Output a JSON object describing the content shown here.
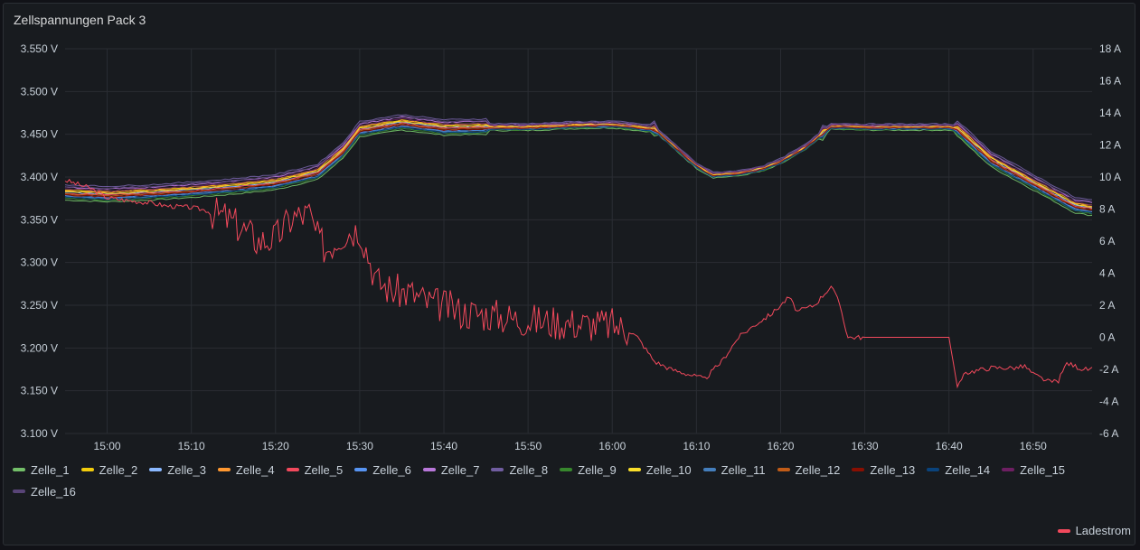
{
  "panel": {
    "title": "Zellspannungen Pack 3"
  },
  "chart_data": {
    "type": "line",
    "title": "Zellspannungen Pack 3",
    "x_ticks": [
      "15:00",
      "15:10",
      "15:20",
      "15:30",
      "15:40",
      "15:50",
      "16:00",
      "16:10",
      "16:20",
      "16:30",
      "16:40",
      "16:50"
    ],
    "x_range": [
      "14:55",
      "16:57"
    ],
    "y_left": {
      "ticks": [
        "3.550 V",
        "3.500 V",
        "3.450 V",
        "3.400 V",
        "3.350 V",
        "3.300 V",
        "3.250 V",
        "3.200 V",
        "3.150 V",
        "3.100 V"
      ],
      "range": [
        3.1,
        3.55
      ],
      "unit": "V"
    },
    "y_right": {
      "ticks": [
        "18 A",
        "16 A",
        "14 A",
        "12 A",
        "10 A",
        "8 A",
        "6 A",
        "4 A",
        "2 A",
        "0 A",
        "-2 A",
        "-4 A",
        "-6 A"
      ],
      "range": [
        -6,
        18
      ],
      "unit": "A"
    },
    "grid": true,
    "legend_position": "bottom",
    "voltage_profile": {
      "times": [
        "14:55",
        "15:00",
        "15:05",
        "15:10",
        "15:15",
        "15:20",
        "15:25",
        "15:28",
        "15:30",
        "15:35",
        "15:40",
        "15:45",
        "15:50",
        "15:55",
        "16:00",
        "16:05",
        "16:10",
        "16:12",
        "16:15",
        "16:18",
        "16:20",
        "16:23",
        "16:26",
        "16:30",
        "16:35",
        "16:40",
        "16:41",
        "16:45",
        "16:50",
        "16:55",
        "16:57"
      ],
      "values": [
        3.381,
        3.379,
        3.381,
        3.384,
        3.388,
        3.393,
        3.405,
        3.43,
        3.455,
        3.463,
        3.457,
        3.458,
        3.458,
        3.46,
        3.461,
        3.456,
        3.413,
        3.402,
        3.404,
        3.41,
        3.418,
        3.435,
        3.459,
        3.458,
        3.458,
        3.458,
        3.456,
        3.42,
        3.393,
        3.366,
        3.363
      ]
    },
    "series": [
      {
        "name": "Zelle_1",
        "color": "#73bf69",
        "offset": -0.008
      },
      {
        "name": "Zelle_2",
        "color": "#f2cc0c",
        "offset": 0.004
      },
      {
        "name": "Zelle_3",
        "color": "#8ab8ff",
        "offset": 0.001
      },
      {
        "name": "Zelle_4",
        "color": "#ff9830",
        "offset": 0.003
      },
      {
        "name": "Zelle_5",
        "color": "#f2495c",
        "offset": 0.0
      },
      {
        "name": "Zelle_6",
        "color": "#5794f2",
        "offset": -0.003
      },
      {
        "name": "Zelle_7",
        "color": "#b877d9",
        "offset": 0.007
      },
      {
        "name": "Zelle_8",
        "color": "#705da0",
        "offset": 0.01
      },
      {
        "name": "Zelle_9",
        "color": "#37872d",
        "offset": -0.006
      },
      {
        "name": "Zelle_10",
        "color": "#fade2a",
        "offset": 0.002
      },
      {
        "name": "Zelle_11",
        "color": "#447ebc",
        "offset": -0.004
      },
      {
        "name": "Zelle_12",
        "color": "#c15c17",
        "offset": -0.001
      },
      {
        "name": "Zelle_13",
        "color": "#890f02",
        "offset": -0.002
      },
      {
        "name": "Zelle_14",
        "color": "#0a437c",
        "offset": -0.005
      },
      {
        "name": "Zelle_15",
        "color": "#6d1f62",
        "offset": 0.005
      },
      {
        "name": "Zelle_16",
        "color": "#584477",
        "offset": 0.008
      }
    ],
    "current_series": {
      "name": "Ladestrom",
      "color": "#f2495c",
      "axis": "right",
      "times": [
        "14:55",
        "14:58",
        "15:00",
        "15:03",
        "15:05",
        "15:07",
        "15:10",
        "15:12",
        "15:14",
        "15:16",
        "15:18",
        "15:20",
        "15:22",
        "15:24",
        "15:25",
        "15:26",
        "15:28",
        "15:30",
        "15:32",
        "15:34",
        "15:36",
        "15:38",
        "15:40",
        "15:42",
        "15:44",
        "15:46",
        "15:48",
        "15:50",
        "15:52",
        "15:55",
        "15:58",
        "16:00",
        "16:02",
        "16:03",
        "16:05",
        "16:07",
        "16:09",
        "16:11",
        "16:13",
        "16:15",
        "16:17",
        "16:19",
        "16:21",
        "16:22",
        "16:24",
        "16:26",
        "16:27",
        "16:28",
        "16:30",
        "16:35",
        "16:40",
        "16:41",
        "16:42",
        "16:45",
        "16:48",
        "16:49",
        "16:50",
        "16:52",
        "16:53",
        "16:54",
        "16:56"
      ],
      "values": [
        9.8,
        9.3,
        8.7,
        8.5,
        8.4,
        8.2,
        8.1,
        7.9,
        7.5,
        6.8,
        6.0,
        6.2,
        7.5,
        7.7,
        6.2,
        5.5,
        6.5,
        6.8,
        3.5,
        2.9,
        2.8,
        2.2,
        2.0,
        1.6,
        1.5,
        1.4,
        1.2,
        1.1,
        1.0,
        0.9,
        0.8,
        0.8,
        0.4,
        0.0,
        -1.5,
        -2.0,
        -2.3,
        -2.6,
        -1.5,
        0.0,
        0.8,
        1.5,
        2.5,
        1.6,
        2.0,
        3.2,
        2.1,
        0.0,
        0.0,
        0.0,
        0.0,
        -3.1,
        -2.2,
        -1.9,
        -1.9,
        -1.8,
        -2.3,
        -2.8,
        -2.7,
        -1.6,
        -2.0
      ]
    }
  }
}
